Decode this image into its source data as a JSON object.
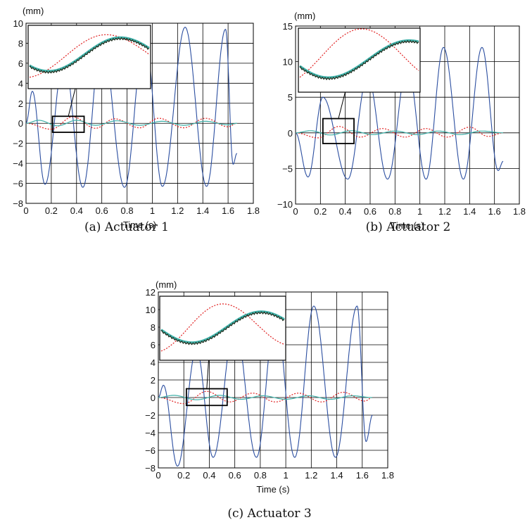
{
  "chart_data": [
    {
      "type": "line",
      "caption": "(a) Actuator 1",
      "unit_label": "(mm)",
      "xlabel": "Time (s)",
      "xlim": [
        0,
        1.8
      ],
      "ylim": [
        -8,
        10
      ],
      "xticks": [
        "0",
        "0.2",
        "0.4",
        "0.6",
        "0.8",
        "1",
        "1.2",
        "1.4",
        "1.6",
        "1.8"
      ],
      "yticks": [
        "−8",
        "−6",
        "−4",
        "−2",
        "0",
        "2",
        "4",
        "6",
        "8",
        "10"
      ],
      "grid": true,
      "data_end": 1.67,
      "series": [
        {
          "color": "#2b4ea0",
          "style": "solid",
          "peaks": [
            [
              0.0,
              0.0
            ],
            [
              0.05,
              3.2
            ],
            [
              0.15,
              -6.1
            ],
            [
              0.3,
              6.5
            ],
            [
              0.45,
              -6.4
            ],
            [
              0.6,
              8.5
            ],
            [
              0.78,
              -6.4
            ],
            [
              0.94,
              9.0
            ],
            [
              1.08,
              -6.3
            ],
            [
              1.26,
              9.6
            ],
            [
              1.43,
              -6.3
            ],
            [
              1.58,
              9.4
            ],
            [
              1.64,
              -4.1
            ],
            [
              1.67,
              -3.0
            ]
          ]
        },
        {
          "color": "#e02020",
          "style": "dotted",
          "peaks": [
            [
              0.0,
              0.0
            ],
            [
              0.2,
              -0.6
            ],
            [
              0.37,
              0.65
            ],
            [
              0.55,
              -0.5
            ],
            [
              0.7,
              0.45
            ],
            [
              0.9,
              -0.45
            ],
            [
              1.05,
              0.5
            ],
            [
              1.25,
              -0.45
            ],
            [
              1.42,
              0.5
            ],
            [
              1.6,
              -0.35
            ],
            [
              1.67,
              0.0
            ]
          ]
        },
        {
          "color": "#3fb0a8",
          "style": "solid",
          "peaks": [
            [
              0.0,
              0.0
            ],
            [
              0.1,
              0.3
            ],
            [
              0.25,
              -0.25
            ],
            [
              0.4,
              0.3
            ],
            [
              0.55,
              -0.2
            ],
            [
              0.72,
              0.25
            ],
            [
              0.9,
              -0.2
            ],
            [
              1.08,
              0.2
            ],
            [
              1.25,
              -0.2
            ],
            [
              1.42,
              0.2
            ],
            [
              1.6,
              -0.15
            ],
            [
              1.67,
              0.0
            ]
          ]
        }
      ],
      "zoom_box": {
        "x": [
          0.21,
          0.46
        ],
        "y": [
          -0.9,
          0.7
        ]
      }
    },
    {
      "type": "line",
      "caption": "(b) Actuator 2",
      "unit_label": "(mm)",
      "xlabel": "Time (s)",
      "xlim": [
        0,
        1.8
      ],
      "ylim": [
        -10,
        15
      ],
      "xticks": [
        "0",
        "0.2",
        "0.4",
        "0.6",
        "0.8",
        "1",
        "1.2",
        "1.4",
        "1.6",
        "1.8"
      ],
      "yticks": [
        "−10",
        "−5",
        "0",
        "5",
        "10",
        "15"
      ],
      "grid": true,
      "data_end": 1.67,
      "series": [
        {
          "color": "#2b4ea0",
          "style": "solid",
          "peaks": [
            [
              0.0,
              0.0
            ],
            [
              0.1,
              -6.2
            ],
            [
              0.22,
              5.0
            ],
            [
              0.42,
              -6.5
            ],
            [
              0.58,
              8.0
            ],
            [
              0.74,
              -6.5
            ],
            [
              0.9,
              9.5
            ],
            [
              1.05,
              -6.5
            ],
            [
              1.19,
              12.0
            ],
            [
              1.35,
              -6.5
            ],
            [
              1.5,
              12.0
            ],
            [
              1.63,
              -5.3
            ],
            [
              1.67,
              -4.0
            ]
          ]
        },
        {
          "color": "#e02020",
          "style": "dotted",
          "peaks": [
            [
              0.0,
              0.0
            ],
            [
              0.18,
              -0.7
            ],
            [
              0.35,
              0.9
            ],
            [
              0.52,
              -0.6
            ],
            [
              0.7,
              0.6
            ],
            [
              0.88,
              -0.6
            ],
            [
              1.05,
              0.6
            ],
            [
              1.22,
              -0.6
            ],
            [
              1.4,
              0.8
            ],
            [
              1.55,
              -0.5
            ],
            [
              1.67,
              0.0
            ]
          ]
        },
        {
          "color": "#3fb0a8",
          "style": "solid",
          "peaks": [
            [
              0.0,
              0.0
            ],
            [
              0.12,
              0.3
            ],
            [
              0.28,
              -0.3
            ],
            [
              0.45,
              0.3
            ],
            [
              0.62,
              -0.25
            ],
            [
              0.8,
              0.25
            ],
            [
              0.98,
              -0.25
            ],
            [
              1.15,
              0.25
            ],
            [
              1.32,
              -0.25
            ],
            [
              1.5,
              0.25
            ],
            [
              1.67,
              0.0
            ]
          ]
        }
      ],
      "zoom_box": {
        "x": [
          0.22,
          0.47
        ],
        "y": [
          -1.5,
          2.0
        ]
      }
    },
    {
      "type": "line",
      "caption": "(c) Actuator 3",
      "unit_label": "(mm)",
      "xlabel": "Time (s)",
      "xlim": [
        0,
        1.8
      ],
      "ylim": [
        -8,
        12
      ],
      "xticks": [
        "0",
        "0.2",
        "0.4",
        "0.6",
        "0.8",
        "1",
        "1.2",
        "1.4",
        "1.6",
        "1.8"
      ],
      "yticks": [
        "−8",
        "−6",
        "−4",
        "−2",
        "0",
        "2",
        "4",
        "6",
        "8",
        "10",
        "12"
      ],
      "grid": true,
      "data_end": 1.68,
      "series": [
        {
          "color": "#2b4ea0",
          "style": "solid",
          "peaks": [
            [
              0.0,
              0.0
            ],
            [
              0.04,
              1.4
            ],
            [
              0.15,
              -7.8
            ],
            [
              0.3,
              5.5
            ],
            [
              0.43,
              -6.8
            ],
            [
              0.6,
              8.5
            ],
            [
              0.77,
              -6.8
            ],
            [
              0.92,
              9.5
            ],
            [
              1.07,
              -6.8
            ],
            [
              1.22,
              10.4
            ],
            [
              1.39,
              -6.8
            ],
            [
              1.56,
              10.4
            ],
            [
              1.63,
              -5.0
            ],
            [
              1.68,
              -2.0
            ]
          ]
        },
        {
          "color": "#e02020",
          "style": "dotted",
          "peaks": [
            [
              0.0,
              0.0
            ],
            [
              0.2,
              -0.7
            ],
            [
              0.38,
              0.7
            ],
            [
              0.56,
              -0.5
            ],
            [
              0.74,
              0.5
            ],
            [
              0.92,
              -0.5
            ],
            [
              1.1,
              0.5
            ],
            [
              1.28,
              -0.5
            ],
            [
              1.45,
              0.6
            ],
            [
              1.62,
              -0.4
            ],
            [
              1.68,
              0.0
            ]
          ]
        },
        {
          "color": "#3fb0a8",
          "style": "solid",
          "peaks": [
            [
              0.0,
              0.0
            ],
            [
              0.12,
              0.25
            ],
            [
              0.3,
              -0.25
            ],
            [
              0.48,
              0.25
            ],
            [
              0.65,
              -0.2
            ],
            [
              0.82,
              0.2
            ],
            [
              1.0,
              -0.2
            ],
            [
              1.18,
              0.2
            ],
            [
              1.35,
              -0.2
            ],
            [
              1.52,
              0.2
            ],
            [
              1.68,
              0.0
            ]
          ]
        }
      ],
      "zoom_box": {
        "x": [
          0.22,
          0.54
        ],
        "y": [
          -0.9,
          1.0
        ]
      }
    }
  ]
}
